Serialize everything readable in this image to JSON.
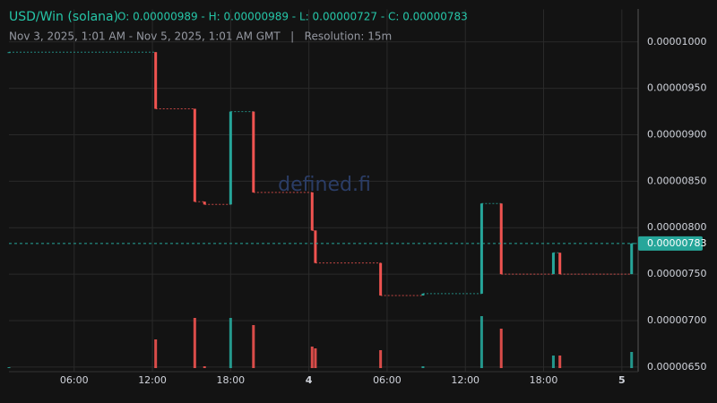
{
  "chart_data": {
    "type": "candlestick",
    "title": "USD/Win (solana)",
    "ohlc_text": "O: 0.00000989 - H: 0.00000989 - L: 0.00000727 - C: 0.00000783",
    "subtitle": "Nov 3, 2025, 1:01 AM - Nov 5, 2025, 1:01 AM GMT   |   Resolution: 15m",
    "watermark": "defined.fi",
    "x": [
      1,
      12.25,
      15.25,
      16,
      18,
      19.75,
      24.25,
      24.5,
      29.5,
      32.75,
      37.25,
      38.75,
      42.75,
      43.25,
      48.75
    ],
    "open": [
      9.89e-06,
      9.89e-06,
      9.28e-06,
      8.28e-06,
      8.25e-06,
      9.25e-06,
      8.38e-06,
      7.97e-06,
      7.62e-06,
      7.27e-06,
      7.29e-06,
      8.26e-06,
      7.5e-06,
      7.73e-06,
      7.5e-06
    ],
    "high": [
      9.89e-06,
      9.89e-06,
      9.28e-06,
      8.28e-06,
      9.25e-06,
      9.25e-06,
      8.38e-06,
      7.97e-06,
      7.62e-06,
      7.29e-06,
      8.26e-06,
      8.26e-06,
      7.73e-06,
      7.73e-06,
      7.83e-06
    ],
    "low": [
      9.89e-06,
      9.28e-06,
      8.28e-06,
      8.25e-06,
      8.25e-06,
      8.38e-06,
      7.97e-06,
      7.62e-06,
      7.27e-06,
      7.27e-06,
      7.29e-06,
      7.5e-06,
      7.5e-06,
      7.5e-06,
      7.5e-06
    ],
    "close": [
      9.89e-06,
      9.28e-06,
      8.28e-06,
      8.25e-06,
      9.25e-06,
      8.38e-06,
      7.97e-06,
      7.62e-06,
      7.27e-06,
      7.29e-06,
      8.26e-06,
      7.5e-06,
      7.73e-06,
      7.5e-06,
      7.83e-06
    ],
    "volume": [
      1,
      32,
      56,
      2,
      56,
      48,
      24,
      22,
      20,
      2,
      58,
      44,
      14,
      14,
      18
    ],
    "up_color": "#26a69a",
    "down_color": "#ef5350",
    "xlim": [
      1,
      49.25
    ],
    "xticks": [
      {
        "value": 6,
        "label": "06:00"
      },
      {
        "value": 12,
        "label": "12:00"
      },
      {
        "value": 18,
        "label": "18:00"
      },
      {
        "value": 24,
        "label": "4"
      },
      {
        "value": 30,
        "label": "06:00"
      },
      {
        "value": 36,
        "label": "12:00"
      },
      {
        "value": 42,
        "label": "18:00"
      },
      {
        "value": 48,
        "label": "5"
      }
    ],
    "ylim": [
      6.45e-06,
      1.035e-05
    ],
    "yticks": [
      {
        "value": 6.5e-06,
        "label": "0.00000650"
      },
      {
        "value": 7e-06,
        "label": "0.00000700"
      },
      {
        "value": 7.5e-06,
        "label": "0.00000750"
      },
      {
        "value": 8e-06,
        "label": "0.00000800"
      },
      {
        "value": 8.5e-06,
        "label": "0.00000850"
      },
      {
        "value": 9e-06,
        "label": "0.00000900"
      },
      {
        "value": 9.5e-06,
        "label": "0.00000950"
      },
      {
        "value": 1e-05,
        "label": "0.00001000"
      }
    ],
    "last_price": {
      "value": 7.83e-06,
      "label": "0.00000783"
    },
    "grid": true
  }
}
